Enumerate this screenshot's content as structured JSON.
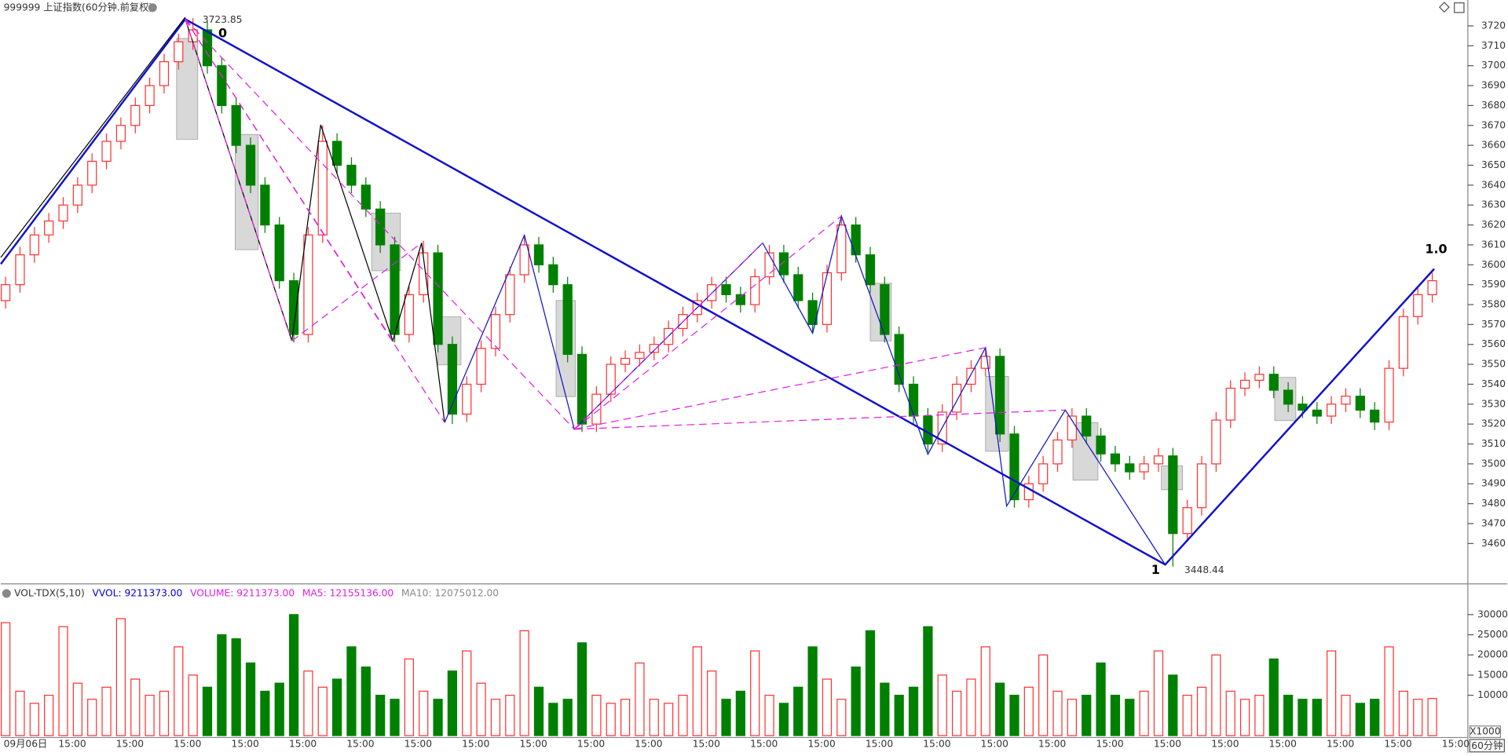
{
  "chart_data": {
    "type": "candlestick",
    "title": "999999 上证指数(60分钟.前复权)",
    "up_color": "#ff3232",
    "down_color": "#008000",
    "categories": [
      "09月06日",
      null,
      null,
      "15:00",
      null,
      null,
      null,
      "15:00",
      null,
      null,
      null,
      "15:00",
      null,
      null,
      null,
      "15:00",
      null,
      null,
      null,
      "15:00",
      null,
      null,
      null,
      "15:00",
      null,
      null,
      null,
      "15:00",
      null,
      null,
      null,
      "15:00",
      null,
      null,
      null,
      "15:00",
      null,
      null,
      null,
      "15:00",
      null,
      null,
      null,
      "15:00",
      null,
      null,
      null,
      "15:00",
      null,
      null,
      null,
      "15:00",
      null,
      null,
      null,
      "15:00",
      null,
      null,
      null,
      "15:00",
      null,
      null,
      null,
      "15:00",
      null,
      null,
      null,
      "15:00",
      null,
      null,
      null,
      "15:00",
      null,
      null,
      null,
      "15:00",
      null,
      null,
      null,
      "15:00",
      null,
      null,
      null,
      "15:00",
      null,
      null,
      null,
      "15:00",
      null,
      null,
      null,
      "15:00",
      null,
      null,
      null,
      "15:00",
      null,
      null,
      null,
      "15:00"
    ],
    "open": [
      3582,
      3590,
      3605,
      3615,
      3622,
      3630,
      3640,
      3652,
      3662,
      3670,
      3680,
      3690,
      3702,
      3712,
      3718,
      3700,
      3680,
      3660,
      3640,
      3620,
      3592,
      3565,
      3615,
      3662,
      3650,
      3640,
      3628,
      3610,
      3565,
      3585,
      3606,
      3560,
      3525,
      3540,
      3558,
      3575,
      3595,
      3610,
      3600,
      3590,
      3555,
      3520,
      3535,
      3550,
      3553,
      3556,
      3560,
      3568,
      3575,
      3582,
      3590,
      3585,
      3580,
      3594,
      3606,
      3595,
      3582,
      3570,
      3596,
      3620,
      3605,
      3590,
      3565,
      3540,
      3524,
      3510,
      3526,
      3540,
      3548,
      3554,
      3515,
      3482,
      3490,
      3500,
      3512,
      3524,
      3514,
      3505,
      3500,
      3496,
      3500,
      3504,
      3465,
      3478,
      3500,
      3522,
      3538,
      3542,
      3545,
      3537,
      3530,
      3527,
      3524,
      3530,
      3534,
      3527,
      3521,
      3548,
      3574,
      3585
    ],
    "high": [
      3594,
      3609,
      3619,
      3626,
      3634,
      3644,
      3656,
      3666,
      3674,
      3684,
      3694,
      3706,
      3716,
      3723.85,
      3722,
      3704,
      3684,
      3664,
      3644,
      3624,
      3596,
      3619,
      3670,
      3666,
      3654,
      3644,
      3632,
      3614,
      3589,
      3612,
      3610,
      3564,
      3544,
      3562,
      3579,
      3599,
      3615,
      3614,
      3604,
      3594,
      3559,
      3539,
      3554,
      3557,
      3560,
      3564,
      3572,
      3579,
      3586,
      3594,
      3594,
      3589,
      3598,
      3610,
      3610,
      3599,
      3586,
      3600,
      3625,
      3624,
      3609,
      3594,
      3569,
      3544,
      3528,
      3530,
      3544,
      3552,
      3558,
      3558,
      3519,
      3494,
      3504,
      3516,
      3528,
      3528,
      3518,
      3509,
      3504,
      3504,
      3508,
      3508,
      3482,
      3504,
      3526,
      3542,
      3546,
      3549,
      3549,
      3541,
      3534,
      3531,
      3534,
      3538,
      3538,
      3531,
      3552,
      3578,
      3589,
      3596
    ],
    "low": [
      3578,
      3586,
      3601,
      3611,
      3618,
      3626,
      3636,
      3648,
      3658,
      3666,
      3676,
      3686,
      3698,
      3708,
      3696,
      3676,
      3656,
      3636,
      3616,
      3588,
      3561,
      3561,
      3611,
      3646,
      3636,
      3624,
      3606,
      3561,
      3561,
      3581,
      3556,
      3520,
      3521,
      3536,
      3554,
      3571,
      3591,
      3596,
      3586,
      3551,
      3516,
      3516,
      3531,
      3546,
      3549,
      3552,
      3556,
      3564,
      3571,
      3578,
      3581,
      3576,
      3576,
      3590,
      3591,
      3578,
      3566,
      3566,
      3592,
      3601,
      3586,
      3561,
      3536,
      3520,
      3506,
      3506,
      3522,
      3536,
      3544,
      3511,
      3478,
      3478,
      3486,
      3496,
      3508,
      3510,
      3501,
      3496,
      3492,
      3492,
      3496,
      3448.44,
      3461,
      3474,
      3496,
      3518,
      3534,
      3538,
      3533,
      3526,
      3523,
      3520,
      3520,
      3526,
      3523,
      3517,
      3517,
      3544,
      3570,
      3581
    ],
    "close": [
      3590,
      3605,
      3615,
      3622,
      3630,
      3640,
      3652,
      3662,
      3670,
      3680,
      3690,
      3702,
      3712,
      3718,
      3700,
      3680,
      3660,
      3640,
      3620,
      3592,
      3565,
      3615,
      3662,
      3650,
      3640,
      3628,
      3610,
      3565,
      3585,
      3606,
      3560,
      3525,
      3540,
      3558,
      3575,
      3595,
      3610,
      3600,
      3590,
      3555,
      3520,
      3535,
      3550,
      3553,
      3556,
      3560,
      3568,
      3575,
      3582,
      3590,
      3585,
      3580,
      3594,
      3606,
      3595,
      3582,
      3570,
      3596,
      3620,
      3605,
      3590,
      3565,
      3540,
      3524,
      3510,
      3526,
      3540,
      3548,
      3554,
      3515,
      3482,
      3490,
      3500,
      3512,
      3524,
      3514,
      3505,
      3500,
      3496,
      3500,
      3504,
      3465,
      3478,
      3500,
      3522,
      3538,
      3542,
      3545,
      3537,
      3530,
      3527,
      3524,
      3530,
      3534,
      3527,
      3521,
      3548,
      3574,
      3585,
      3592
    ],
    "ylim": [
      3440.7,
      3733
    ],
    "yticks": [
      3460,
      3470,
      3480,
      3490,
      3500,
      3510,
      3520,
      3530,
      3540,
      3550,
      3560,
      3570,
      3580,
      3590,
      3600,
      3610,
      3620,
      3630,
      3640,
      3650,
      3660,
      3670,
      3680,
      3690,
      3700,
      3710,
      3720
    ],
    "annotations": [
      "0",
      "1",
      "1.0"
    ],
    "volume": {
      "header": [
        "VOL-TDX(5,10)",
        "VVOL: 9211373.00",
        "VOLUME: 9211373.00",
        "MA5: 12155136.00",
        "MA10: 12075012.00"
      ],
      "header_colors": [
        "#333333",
        "#0000cc",
        "#e020e0",
        "#e020e0",
        "#888888"
      ],
      "values": [
        28000,
        11000,
        8000,
        10000,
        27000,
        13000,
        9000,
        12000,
        29000,
        14000,
        10000,
        11000,
        22000,
        15000,
        12000,
        25000,
        24000,
        18000,
        11000,
        13000,
        30000,
        16000,
        12000,
        14000,
        22000,
        17000,
        10000,
        9000,
        19000,
        11000,
        9000,
        16000,
        21000,
        13000,
        9000,
        10000,
        26000,
        12000,
        8000,
        9000,
        23000,
        10000,
        8000,
        9000,
        18000,
        9000,
        8000,
        10000,
        22000,
        16000,
        9000,
        11000,
        21000,
        10000,
        8000,
        12000,
        22000,
        14000,
        9000,
        17000,
        26000,
        13000,
        10000,
        12000,
        27000,
        15000,
        11000,
        14000,
        22000,
        13000,
        10000,
        12000,
        20000,
        11000,
        9000,
        10000,
        18000,
        10000,
        9000,
        11000,
        21000,
        15000,
        10000,
        12000,
        20000,
        11000,
        9000,
        10000,
        19000,
        10000,
        9000,
        9000,
        21000,
        10000,
        8000,
        9000,
        22000,
        11000,
        9000,
        9211.373
      ],
      "ylim": [
        0,
        32860
      ],
      "yticks": [
        10000,
        15000,
        20000,
        25000,
        30000
      ],
      "multiplier": "X1000"
    },
    "period_button": "60分钟"
  }
}
